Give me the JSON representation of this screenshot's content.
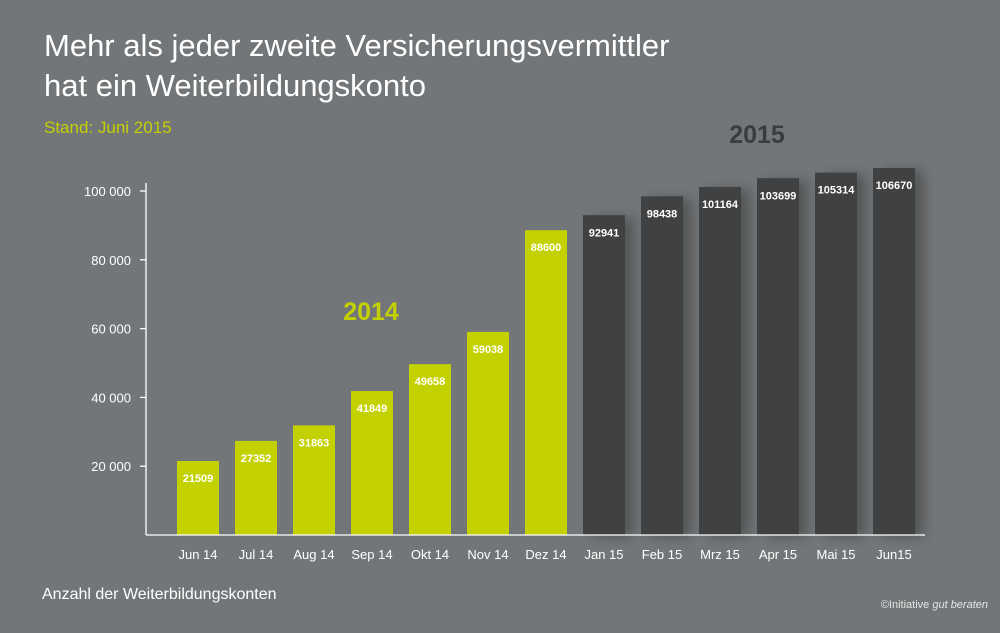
{
  "header": {
    "title_line1": "Mehr als jeder zweite Versicherungsvermittler",
    "title_line2": "hat ein Weiterbildungskonto",
    "subtitle": "Stand: Juni 2015"
  },
  "footer": {
    "note": "Anzahl der Weiterbildungskonten",
    "credit_prefix": "©Initiative ",
    "credit_brand": "gut beraten"
  },
  "colors": {
    "background": "#737678",
    "bar_2014": "#c4d100",
    "bar_2015": "#3f4143",
    "axis": "#ffffff"
  },
  "chart_data": {
    "type": "bar",
    "categories": [
      "Jun 14",
      "Jul 14",
      "Aug 14",
      "Sep 14",
      "Okt 14",
      "Nov 14",
      "Dez 14",
      "Jan 15",
      "Feb 15",
      "Mrz 15",
      "Apr 15",
      "Mai 15",
      "Jun15"
    ],
    "values": [
      21509,
      27352,
      31863,
      41849,
      49658,
      59038,
      88600,
      92941,
      98438,
      101164,
      103699,
      105314,
      106670
    ],
    "value_labels": [
      "21509",
      "27352",
      "31863",
      "41849",
      "49658",
      "59038",
      "88600",
      "92941",
      "98438",
      "101164",
      "103699",
      "105314",
      "106670"
    ],
    "groups": [
      {
        "label": "2014",
        "start": 0,
        "end": 6,
        "color": "#c4d100",
        "label_color": "#c4d100"
      },
      {
        "label": "2015",
        "start": 7,
        "end": 12,
        "color": "#3f4143",
        "label_color": "#3a3c3e"
      }
    ],
    "yticks": [
      {
        "value": 20000,
        "label": "20 000"
      },
      {
        "value": 40000,
        "label": "40 000"
      },
      {
        "value": 60000,
        "label": "60 000"
      },
      {
        "value": 80000,
        "label": "80 000"
      },
      {
        "value": 100000,
        "label": "100 000"
      }
    ],
    "ylim": [
      0,
      100000
    ],
    "grid": false,
    "legend": "none"
  }
}
